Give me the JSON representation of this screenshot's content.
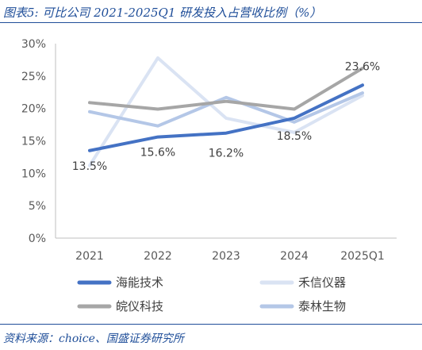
{
  "figure": {
    "title": "图表5:  可比公司 2021-2025Q1 研发投入占营收比例（%）",
    "source": "资料来源：choice、国盛证券研究所"
  },
  "chart_data": {
    "type": "line",
    "title": "",
    "xlabel": "",
    "ylabel": "",
    "categories": [
      "2021",
      "2022",
      "2023",
      "2024",
      "2025Q1"
    ],
    "ylim": [
      0,
      30
    ],
    "yticks": [
      "0%",
      "5%",
      "10%",
      "15%",
      "20%",
      "25%",
      "30%"
    ],
    "grid": false,
    "legend_position": "bottom",
    "series": [
      {
        "name": "海能技术",
        "color": "#4472c4",
        "width": 4,
        "values": [
          13.5,
          15.6,
          16.2,
          18.5,
          23.6
        ],
        "labels": [
          "13.5%",
          "15.6%",
          "16.2%",
          "18.5%",
          "23.6%"
        ]
      },
      {
        "name": "禾信仪器",
        "color": "#dae3f3",
        "width": 4,
        "values": [
          11.2,
          27.8,
          18.5,
          16.3,
          22.0
        ]
      },
      {
        "name": "皖仪科技",
        "color": "#a6a6a6",
        "width": 4,
        "values": [
          20.9,
          19.9,
          21.1,
          19.9,
          26.2
        ]
      },
      {
        "name": "泰林生物",
        "color": "#b4c7e7",
        "width": 4,
        "values": [
          19.5,
          17.3,
          21.7,
          17.9,
          22.4
        ]
      }
    ]
  }
}
